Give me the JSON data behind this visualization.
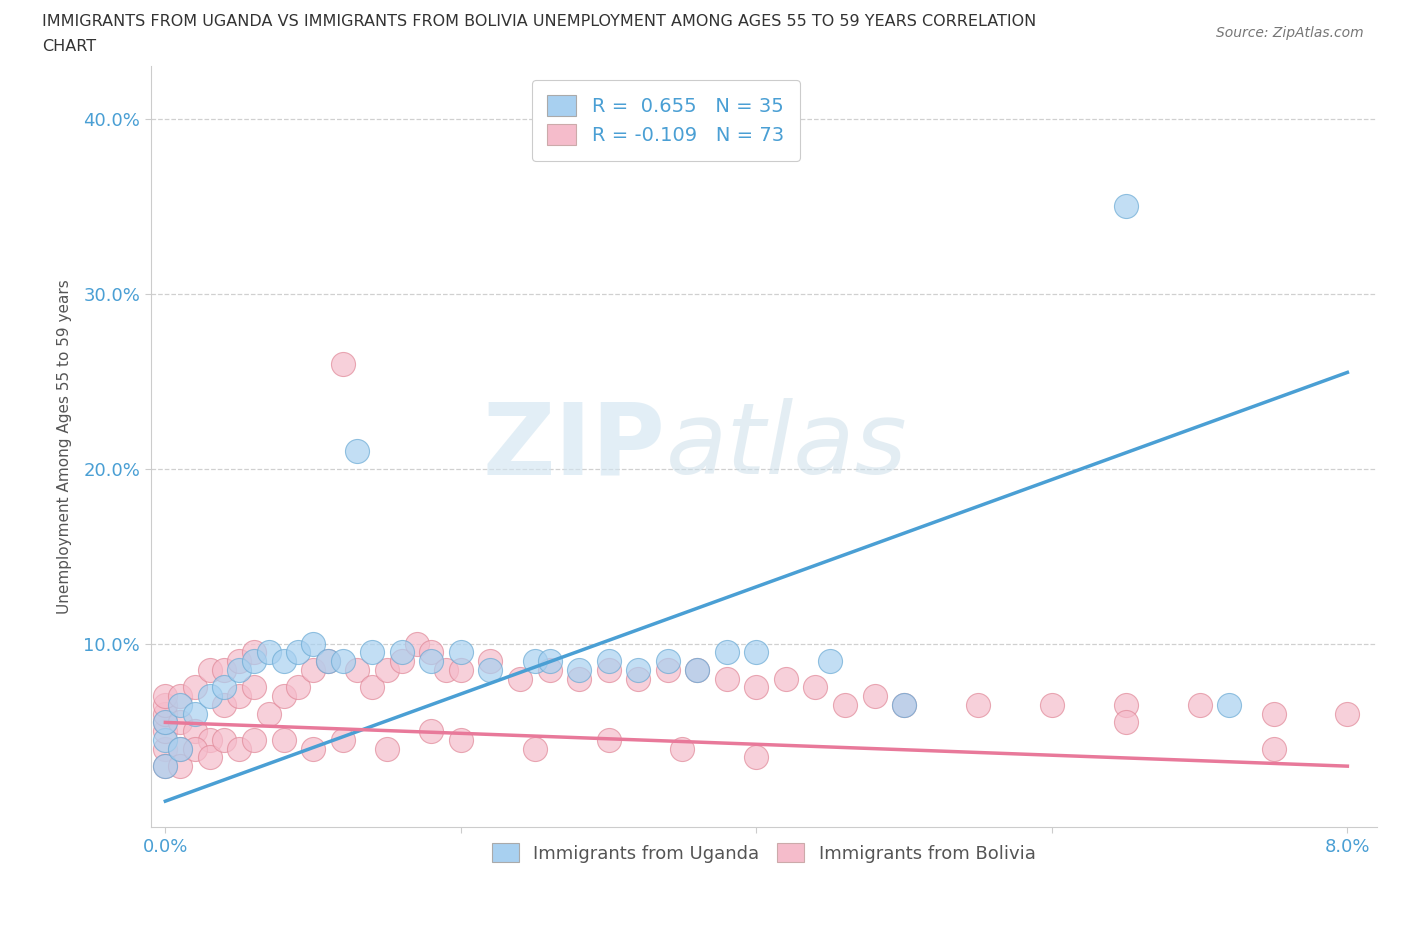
{
  "title_line1": "IMMIGRANTS FROM UGANDA VS IMMIGRANTS FROM BOLIVIA UNEMPLOYMENT AMONG AGES 55 TO 59 YEARS CORRELATION",
  "title_line2": "CHART",
  "source_text": "Source: ZipAtlas.com",
  "ylabel": "Unemployment Among Ages 55 to 59 years",
  "xlim": [
    -0.001,
    0.082
  ],
  "ylim": [
    -0.005,
    0.43
  ],
  "xticks": [
    0.0,
    0.02,
    0.04,
    0.06,
    0.08
  ],
  "xtick_labels": [
    "0.0%",
    "",
    "",
    "",
    "8.0%"
  ],
  "yticks": [
    0.1,
    0.2,
    0.3,
    0.4
  ],
  "ytick_labels": [
    "10.0%",
    "20.0%",
    "30.0%",
    "40.0%"
  ],
  "uganda_color": "#a8d0f0",
  "bolivia_color": "#f5bccb",
  "uganda_line_color": "#4a9fd4",
  "bolivia_line_color": "#e8799a",
  "uganda_R": 0.655,
  "uganda_N": 35,
  "bolivia_R": -0.109,
  "bolivia_N": 73,
  "legend_label1": "Immigrants from Uganda",
  "legend_label2": "Immigrants from Bolivia",
  "watermark_zip": "ZIP",
  "watermark_atlas": "atlas",
  "uganda_x": [
    0.0,
    0.0,
    0.0,
    0.001,
    0.001,
    0.002,
    0.003,
    0.004,
    0.005,
    0.006,
    0.007,
    0.008,
    0.009,
    0.01,
    0.011,
    0.012,
    0.013,
    0.014,
    0.016,
    0.018,
    0.02,
    0.022,
    0.025,
    0.026,
    0.028,
    0.03,
    0.032,
    0.034,
    0.036,
    0.038,
    0.04,
    0.045,
    0.05,
    0.065,
    0.072
  ],
  "uganda_y": [
    0.03,
    0.045,
    0.055,
    0.04,
    0.065,
    0.06,
    0.07,
    0.075,
    0.085,
    0.09,
    0.095,
    0.09,
    0.095,
    0.1,
    0.09,
    0.09,
    0.21,
    0.095,
    0.095,
    0.09,
    0.095,
    0.085,
    0.09,
    0.09,
    0.085,
    0.09,
    0.085,
    0.09,
    0.085,
    0.095,
    0.095,
    0.09,
    0.065,
    0.35,
    0.065
  ],
  "bolivia_x": [
    0.0,
    0.0,
    0.0,
    0.0,
    0.0,
    0.0,
    0.001,
    0.001,
    0.001,
    0.002,
    0.002,
    0.003,
    0.003,
    0.004,
    0.004,
    0.005,
    0.005,
    0.006,
    0.006,
    0.007,
    0.008,
    0.009,
    0.01,
    0.011,
    0.012,
    0.013,
    0.014,
    0.015,
    0.016,
    0.017,
    0.018,
    0.019,
    0.02,
    0.022,
    0.024,
    0.026,
    0.028,
    0.03,
    0.032,
    0.034,
    0.036,
    0.038,
    0.04,
    0.042,
    0.044,
    0.046,
    0.048,
    0.05,
    0.055,
    0.06,
    0.065,
    0.07,
    0.075,
    0.08,
    0.0,
    0.001,
    0.002,
    0.003,
    0.004,
    0.005,
    0.006,
    0.008,
    0.01,
    0.012,
    0.015,
    0.018,
    0.02,
    0.025,
    0.03,
    0.035,
    0.04,
    0.065,
    0.075
  ],
  "bolivia_y": [
    0.04,
    0.05,
    0.055,
    0.06,
    0.065,
    0.07,
    0.04,
    0.055,
    0.07,
    0.05,
    0.075,
    0.045,
    0.085,
    0.065,
    0.085,
    0.07,
    0.09,
    0.075,
    0.095,
    0.06,
    0.07,
    0.075,
    0.085,
    0.09,
    0.26,
    0.085,
    0.075,
    0.085,
    0.09,
    0.1,
    0.095,
    0.085,
    0.085,
    0.09,
    0.08,
    0.085,
    0.08,
    0.085,
    0.08,
    0.085,
    0.085,
    0.08,
    0.075,
    0.08,
    0.075,
    0.065,
    0.07,
    0.065,
    0.065,
    0.065,
    0.065,
    0.065,
    0.06,
    0.06,
    0.03,
    0.03,
    0.04,
    0.035,
    0.045,
    0.04,
    0.045,
    0.045,
    0.04,
    0.045,
    0.04,
    0.05,
    0.045,
    0.04,
    0.045,
    0.04,
    0.035,
    0.055,
    0.04
  ],
  "uganda_line_x": [
    0.0,
    0.08
  ],
  "uganda_line_y": [
    0.01,
    0.255
  ],
  "bolivia_line_x": [
    0.0,
    0.08
  ],
  "bolivia_line_y": [
    0.055,
    0.03
  ]
}
